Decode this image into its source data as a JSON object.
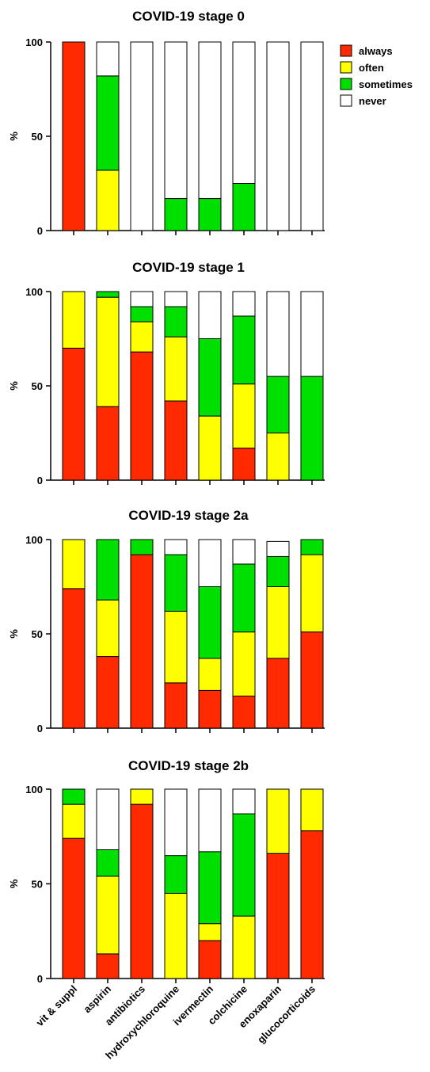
{
  "colors": {
    "always": "#ff2a00",
    "often": "#ffff00",
    "sometimes": "#00e000",
    "never": "#ffffff"
  },
  "chart_data": [
    {
      "type": "bar",
      "stacked": true,
      "title": "COVID-19 stage 0",
      "ylabel": "%",
      "ylim": [
        0,
        100
      ],
      "yticks": [
        "0",
        "50",
        "100"
      ],
      "categories": [
        "vit & suppl",
        "aspirin",
        "antibiotics",
        "hydroxychloroquine",
        "ivermectin",
        "colchicine",
        "enoxaparin",
        "glucocorticoids"
      ],
      "series": [
        {
          "name": "always",
          "values": [
            100,
            0,
            0,
            0,
            0,
            0,
            0,
            0
          ]
        },
        {
          "name": "often",
          "values": [
            0,
            32,
            0,
            0,
            0,
            0,
            0,
            0
          ]
        },
        {
          "name": "sometimes",
          "values": [
            0,
            50,
            0,
            17,
            17,
            25,
            0,
            0
          ]
        },
        {
          "name": "never",
          "values": [
            0,
            18,
            100,
            83,
            83,
            75,
            100,
            100
          ]
        }
      ],
      "legend": [
        "always",
        "often",
        "sometimes",
        "never"
      ],
      "legend_position": "top-right"
    },
    {
      "type": "bar",
      "stacked": true,
      "title": "COVID-19 stage 1",
      "ylabel": "%",
      "ylim": [
        0,
        100
      ],
      "yticks": [
        "0",
        "50",
        "100"
      ],
      "categories": [
        "vit & suppl",
        "aspirin",
        "antibiotics",
        "hydroxychloroquine",
        "ivermectin",
        "colchicine",
        "enoxaparin",
        "glucocorticoids"
      ],
      "series": [
        {
          "name": "always",
          "values": [
            70,
            39,
            68,
            42,
            0,
            17,
            0,
            0
          ]
        },
        {
          "name": "often",
          "values": [
            30,
            58,
            16,
            34,
            34,
            34,
            25,
            0
          ]
        },
        {
          "name": "sometimes",
          "values": [
            0,
            3,
            8,
            16,
            41,
            36,
            30,
            55
          ]
        },
        {
          "name": "never",
          "values": [
            0,
            0,
            8,
            8,
            25,
            13,
            45,
            45
          ]
        }
      ]
    },
    {
      "type": "bar",
      "stacked": true,
      "title": "COVID-19 stage 2a",
      "ylabel": "%",
      "ylim": [
        0,
        100
      ],
      "yticks": [
        "0",
        "50",
        "100"
      ],
      "categories": [
        "vit & suppl",
        "aspirin",
        "antibiotics",
        "hydroxychloroquine",
        "ivermectin",
        "colchicine",
        "enoxaparin",
        "glucocorticoids"
      ],
      "series": [
        {
          "name": "always",
          "values": [
            74,
            38,
            92,
            24,
            20,
            17,
            37,
            51
          ]
        },
        {
          "name": "often",
          "values": [
            26,
            30,
            0,
            38,
            17,
            34,
            38,
            41
          ]
        },
        {
          "name": "sometimes",
          "values": [
            0,
            32,
            8,
            30,
            38,
            36,
            16,
            8
          ]
        },
        {
          "name": "never",
          "values": [
            0,
            0,
            0,
            8,
            25,
            13,
            8,
            0
          ]
        }
      ]
    },
    {
      "type": "bar",
      "stacked": true,
      "title": "COVID-19 stage 2b",
      "ylabel": "%",
      "ylim": [
        0,
        100
      ],
      "yticks": [
        "0",
        "50",
        "100"
      ],
      "categories": [
        "vit & suppl",
        "aspirin",
        "antibiotics",
        "hydroxychloroquine",
        "ivermectin",
        "colchicine",
        "enoxaparin",
        "glucocorticoids"
      ],
      "series": [
        {
          "name": "always",
          "values": [
            74,
            13,
            92,
            0,
            20,
            0,
            66,
            78
          ]
        },
        {
          "name": "often",
          "values": [
            18,
            41,
            8,
            45,
            9,
            33,
            34,
            22
          ]
        },
        {
          "name": "sometimes",
          "values": [
            8,
            14,
            0,
            20,
            38,
            54,
            0,
            0
          ]
        },
        {
          "name": "never",
          "values": [
            0,
            32,
            0,
            35,
            33,
            13,
            0,
            0
          ]
        }
      ]
    }
  ]
}
